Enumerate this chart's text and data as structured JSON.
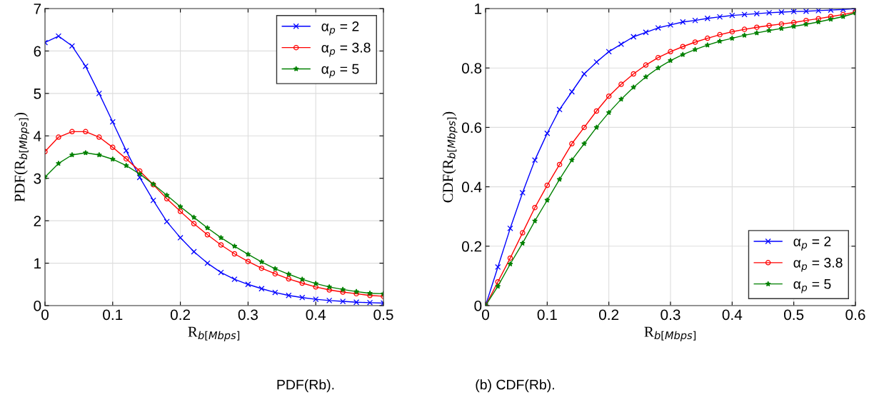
{
  "chart_data": [
    {
      "type": "line",
      "xlabel": "R$_{b[Mbps]}$",
      "ylabel": "PDF(R$_{b[Mbps]}$)",
      "xlim": [
        0,
        0.5
      ],
      "ylim": [
        0,
        7
      ],
      "xticks": [
        0,
        0.1,
        0.2,
        0.3,
        0.4,
        0.5
      ],
      "yticks": [
        0,
        1,
        2,
        3,
        4,
        5,
        6,
        7
      ],
      "grid": true,
      "legend": "top right",
      "annotations": [
        "PDF(Rb)."
      ],
      "x": [
        0,
        0.02,
        0.04,
        0.06,
        0.08,
        0.1,
        0.12,
        0.14,
        0.16,
        0.18,
        0.2,
        0.22,
        0.24,
        0.26,
        0.28,
        0.3,
        0.32,
        0.34,
        0.36,
        0.38,
        0.4,
        0.42,
        0.44,
        0.46,
        0.48,
        0.5
      ],
      "series": [
        {
          "name": "α$_{p}$ = 2",
          "color": "#0000ff",
          "marker": "cross",
          "values": [
            6.2,
            6.35,
            6.12,
            5.64,
            5.0,
            4.33,
            3.65,
            3.02,
            2.48,
            1.98,
            1.6,
            1.27,
            1.0,
            0.78,
            0.62,
            0.5,
            0.4,
            0.31,
            0.24,
            0.19,
            0.15,
            0.12,
            0.1,
            0.08,
            0.07,
            0.06
          ]
        },
        {
          "name": "α$_{p}$ = 3.8",
          "color": "#ff0000",
          "marker": "circle",
          "values": [
            3.63,
            3.97,
            4.1,
            4.1,
            3.97,
            3.73,
            3.46,
            3.17,
            2.85,
            2.52,
            2.22,
            1.93,
            1.67,
            1.43,
            1.22,
            1.04,
            0.88,
            0.75,
            0.63,
            0.53,
            0.44,
            0.37,
            0.32,
            0.28,
            0.24,
            0.22
          ]
        },
        {
          "name": "α$_{p}$ = 5",
          "color": "#008000",
          "marker": "star",
          "values": [
            3.03,
            3.35,
            3.55,
            3.6,
            3.55,
            3.45,
            3.3,
            3.1,
            2.86,
            2.6,
            2.33,
            2.08,
            1.83,
            1.6,
            1.4,
            1.21,
            1.03,
            0.87,
            0.74,
            0.62,
            0.52,
            0.44,
            0.38,
            0.33,
            0.29,
            0.28
          ]
        }
      ]
    },
    {
      "type": "line",
      "xlabel": "R$_{b[Mbps]}$",
      "ylabel": "CDF(R$_{b[Mbps]}$)",
      "xlim": [
        0,
        0.6
      ],
      "ylim": [
        0,
        1
      ],
      "xticks": [
        0,
        0.1,
        0.2,
        0.3,
        0.4,
        0.5,
        0.6
      ],
      "yticks": [
        0,
        0.2,
        0.4,
        0.6,
        0.8,
        1
      ],
      "grid": true,
      "legend": "bottom right",
      "annotations": [
        "(b) CDF(Rb)."
      ],
      "x": [
        0,
        0.02,
        0.04,
        0.06,
        0.08,
        0.1,
        0.12,
        0.14,
        0.16,
        0.18,
        0.2,
        0.22,
        0.24,
        0.26,
        0.28,
        0.3,
        0.32,
        0.34,
        0.36,
        0.38,
        0.4,
        0.42,
        0.44,
        0.46,
        0.48,
        0.5,
        0.52,
        0.54,
        0.56,
        0.58,
        0.6
      ],
      "series": [
        {
          "name": "α$_{p}$ = 2",
          "color": "#0000ff",
          "marker": "cross",
          "values": [
            0,
            0.13,
            0.26,
            0.38,
            0.49,
            0.58,
            0.66,
            0.72,
            0.78,
            0.82,
            0.855,
            0.88,
            0.905,
            0.92,
            0.935,
            0.945,
            0.955,
            0.96,
            0.967,
            0.972,
            0.977,
            0.98,
            0.983,
            0.986,
            0.988,
            0.99,
            0.991,
            0.993,
            0.995,
            0.997,
            1.0
          ]
        },
        {
          "name": "α$_{p}$ = 3.8",
          "color": "#ff0000",
          "marker": "circle",
          "values": [
            0,
            0.08,
            0.16,
            0.245,
            0.33,
            0.405,
            0.475,
            0.545,
            0.6,
            0.655,
            0.705,
            0.745,
            0.78,
            0.81,
            0.835,
            0.855,
            0.872,
            0.887,
            0.9,
            0.912,
            0.922,
            0.93,
            0.937,
            0.943,
            0.948,
            0.953,
            0.96,
            0.966,
            0.973,
            0.98,
            0.988
          ]
        },
        {
          "name": "α$_{p}$ = 5",
          "color": "#008000",
          "marker": "star",
          "values": [
            0,
            0.065,
            0.14,
            0.21,
            0.285,
            0.355,
            0.425,
            0.49,
            0.545,
            0.6,
            0.65,
            0.695,
            0.735,
            0.77,
            0.8,
            0.825,
            0.845,
            0.862,
            0.877,
            0.89,
            0.9,
            0.91,
            0.918,
            0.926,
            0.933,
            0.94,
            0.947,
            0.955,
            0.964,
            0.973,
            0.985
          ]
        }
      ]
    }
  ]
}
